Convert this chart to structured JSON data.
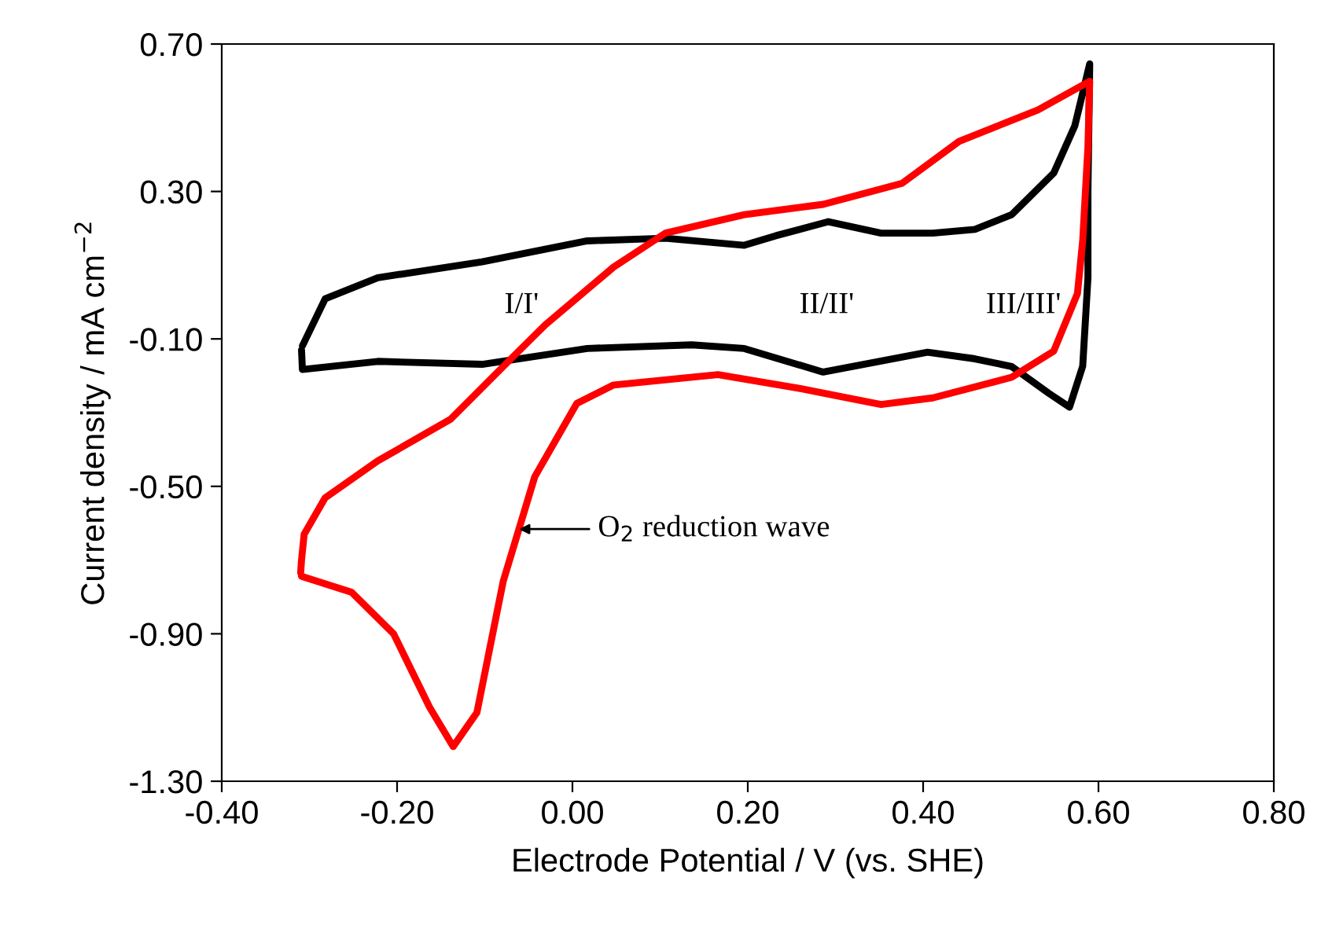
{
  "chart_data": {
    "type": "line",
    "xlabel": "Electrode Potential / V (vs. SHE)",
    "ylabel": "Current density / mA cm$^{−2}$",
    "xlim": [
      -0.4,
      0.8
    ],
    "ylim": [
      -1.3,
      0.7
    ],
    "xticks": [
      {
        "value": -0.4,
        "label": "-0.40"
      },
      {
        "value": -0.2,
        "label": "-0.20"
      },
      {
        "value": 0,
        "label": "0.00"
      },
      {
        "value": 0.2,
        "label": "0.20"
      },
      {
        "value": 0.4,
        "label": "0.40"
      },
      {
        "value": 0.6,
        "label": "0.60"
      },
      {
        "value": 0.8,
        "label": "0.80"
      }
    ],
    "yticks": [
      {
        "value": 0.7,
        "label": "0.70"
      },
      {
        "value": 0.3,
        "label": "0.30"
      },
      {
        "value": -0.1,
        "label": "-0.10"
      },
      {
        "value": -0.5,
        "label": "-0.50"
      },
      {
        "value": -0.9,
        "label": "-0.90"
      },
      {
        "value": -1.3,
        "label": "-1.30"
      }
    ],
    "grid": false,
    "legend": false,
    "series": [
      {
        "color": "#000000",
        "x": [
          -0.308,
          -0.282,
          -0.222,
          -0.103,
          0.017,
          0.106,
          0.196,
          0.232,
          0.292,
          0.352,
          0.411,
          0.459,
          0.501,
          0.549,
          0.573,
          0.59,
          0.588,
          0.588,
          0.582,
          0.567,
          0.543,
          0.501,
          0.459,
          0.405,
          0.286,
          0.196,
          0.136,
          0.017,
          -0.103,
          -0.222,
          -0.308,
          -0.309
        ],
        "values": [
          -0.119,
          0.009,
          0.066,
          0.109,
          0.166,
          0.173,
          0.154,
          0.18,
          0.218,
          0.187,
          0.187,
          0.197,
          0.237,
          0.35,
          0.478,
          0.646,
          0.3,
          0.066,
          -0.174,
          -0.285,
          -0.247,
          -0.175,
          -0.154,
          -0.136,
          -0.19,
          -0.126,
          -0.116,
          -0.126,
          -0.169,
          -0.161,
          -0.183,
          -0.13
        ]
      },
      {
        "color": "#ff0000",
        "x": [
          -0.309,
          -0.252,
          -0.204,
          -0.163,
          -0.136,
          -0.109,
          -0.079,
          -0.043,
          0.005,
          0.047,
          0.166,
          0.256,
          0.352,
          0.411,
          0.501,
          0.549,
          0.576,
          0.582,
          0.588,
          0.59,
          0.531,
          0.441,
          0.376,
          0.286,
          0.196,
          0.106,
          0.047,
          -0.031,
          -0.079,
          -0.139,
          -0.222,
          -0.282,
          -0.306,
          -0.309,
          -0.31
        ],
        "values": [
          -0.744,
          -0.787,
          -0.9,
          -1.099,
          -1.206,
          -1.114,
          -0.758,
          -0.474,
          -0.275,
          -0.225,
          -0.197,
          -0.233,
          -0.278,
          -0.26,
          -0.204,
          -0.133,
          0.023,
          0.166,
          0.422,
          0.599,
          0.521,
          0.436,
          0.322,
          0.265,
          0.237,
          0.187,
          0.095,
          -0.062,
          -0.175,
          -0.318,
          -0.431,
          -0.531,
          -0.63,
          -0.7,
          -0.735
        ]
      }
    ],
    "annotations": [
      "I/I'",
      "II/II'",
      "III/III'",
      {
        "text": "O$_{2}$ reduction wave",
        "x": -0.061,
        "y": -0.616
      }
    ]
  }
}
